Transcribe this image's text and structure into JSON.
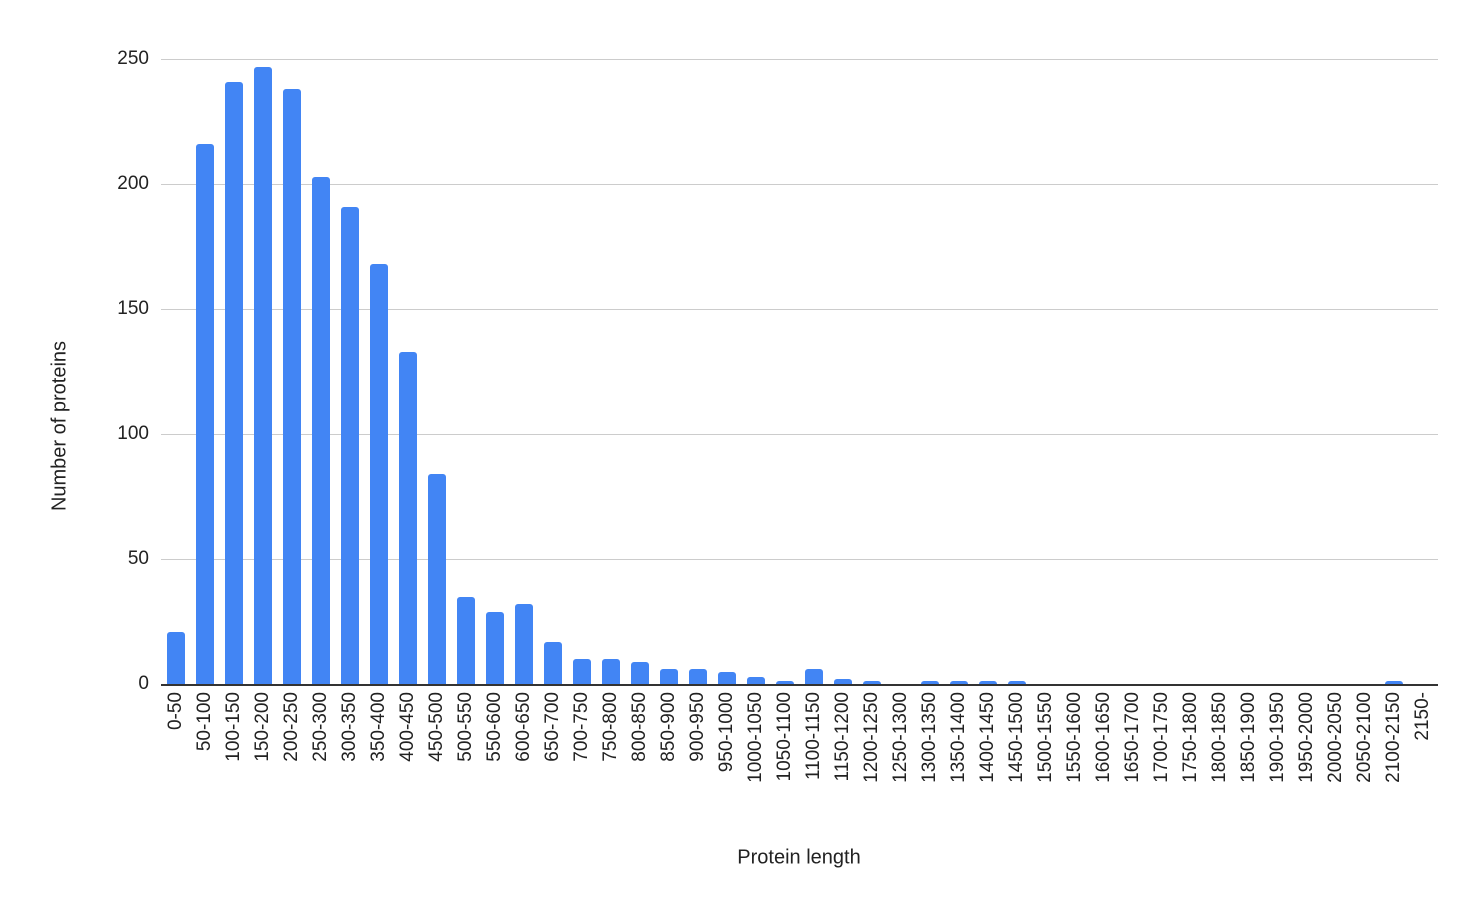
{
  "chart_data": {
    "type": "bar",
    "title": "",
    "xlabel": "Protein length",
    "ylabel": "Number of proteins",
    "ylim": [
      0,
      250
    ],
    "yticks": [
      0,
      50,
      100,
      150,
      200,
      250
    ],
    "grid": true,
    "legend": null,
    "bar_color": "#4285f4",
    "categories": [
      "0-50",
      "50-100",
      "100-150",
      "150-200",
      "200-250",
      "250-300",
      "300-350",
      "350-400",
      "400-450",
      "450-500",
      "500-550",
      "550-600",
      "600-650",
      "650-700",
      "700-750",
      "750-800",
      "800-850",
      "850-900",
      "900-950",
      "950-1000",
      "1000-1050",
      "1050-1100",
      "1100-1150",
      "1150-1200",
      "1200-1250",
      "1250-1300",
      "1300-1350",
      "1350-1400",
      "1400-1450",
      "1450-1500",
      "1500-1550",
      "1550-1600",
      "1600-1650",
      "1650-1700",
      "1700-1750",
      "1750-1800",
      "1800-1850",
      "1850-1900",
      "1900-1950",
      "1950-2000",
      "2000-2050",
      "2050-2100",
      "2100-2150",
      "2150-"
    ],
    "values": [
      21,
      216,
      241,
      247,
      238,
      203,
      191,
      168,
      133,
      84,
      35,
      29,
      32,
      17,
      10,
      10,
      9,
      6,
      6,
      5,
      3,
      1,
      6,
      2,
      1,
      0,
      1,
      1,
      1,
      1,
      0,
      0,
      0,
      0,
      0,
      0,
      0,
      0,
      0,
      0,
      0,
      0,
      1,
      0
    ]
  }
}
